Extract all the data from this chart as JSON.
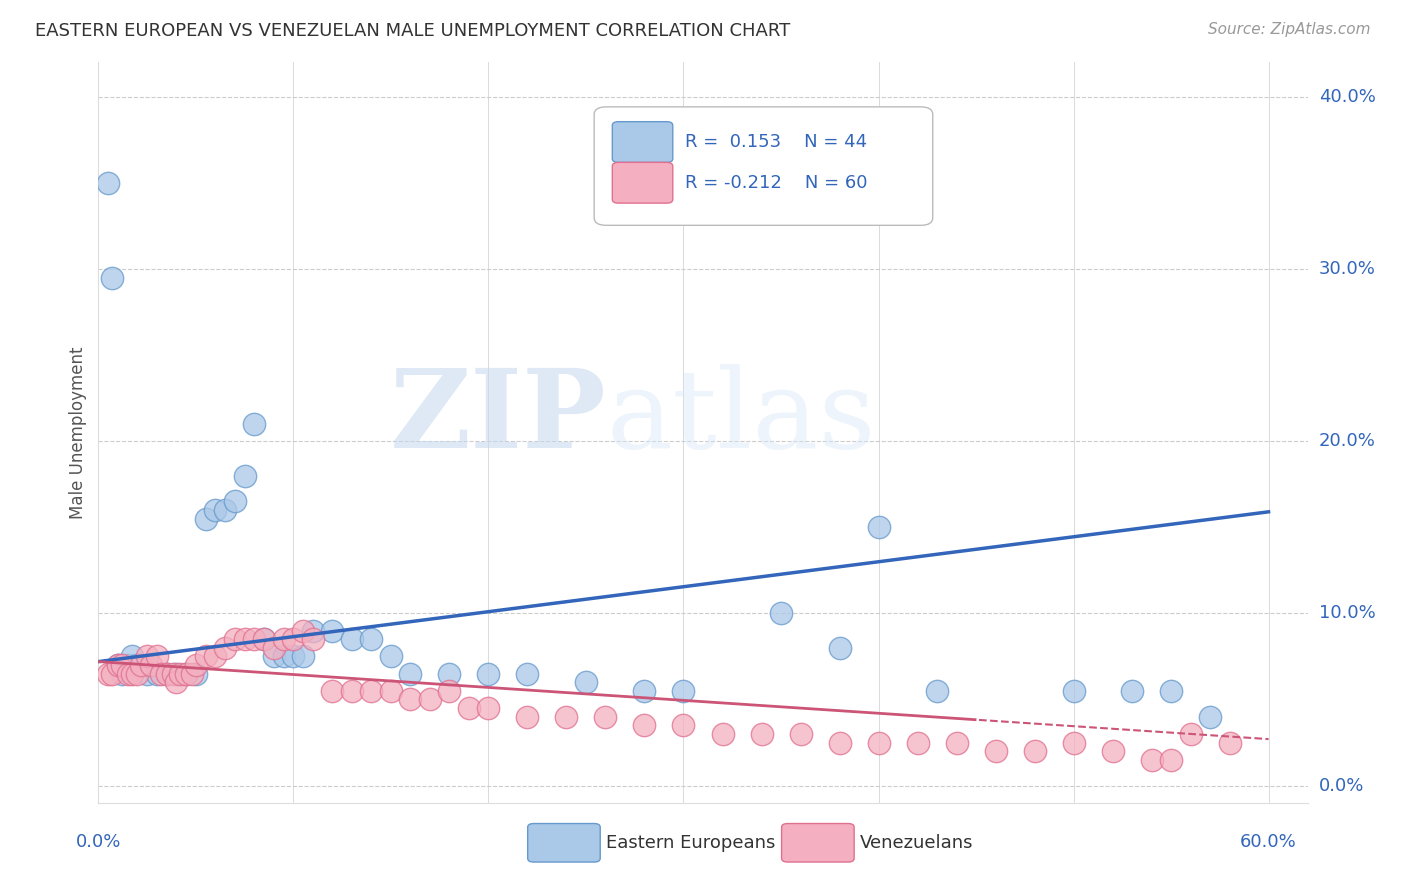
{
  "title": "EASTERN EUROPEAN VS VENEZUELAN MALE UNEMPLOYMENT CORRELATION CHART",
  "source": "Source: ZipAtlas.com",
  "ylabel": "Male Unemployment",
  "xlim": [
    0,
    0.62
  ],
  "ylim": [
    -0.01,
    0.42
  ],
  "yticks": [
    0.0,
    0.1,
    0.2,
    0.3,
    0.4
  ],
  "ytick_labels": [
    "0.0%",
    "10.0%",
    "20.0%",
    "30.0%",
    "40.0%"
  ],
  "xtick_vals": [
    0.0,
    0.1,
    0.2,
    0.3,
    0.4,
    0.5,
    0.6
  ],
  "grid_color": "#cccccc",
  "background_color": "#ffffff",
  "blue_color": "#aac8e8",
  "pink_color": "#f4b0c0",
  "blue_edge_color": "#6699cc",
  "pink_edge_color": "#e07090",
  "blue_line_color": "#3366bb",
  "pink_line_color": "#cc5577",
  "legend_label1": "Eastern Europeans",
  "legend_label2": "Venezuelans",
  "watermark_zip": "ZIP",
  "watermark_atlas": "atlas",
  "blue_intercept": 0.072,
  "blue_slope": 0.145,
  "pink_intercept": 0.072,
  "pink_slope": -0.075,
  "blue_x": [
    0.005,
    0.007,
    0.01,
    0.012,
    0.015,
    0.017,
    0.02,
    0.025,
    0.03,
    0.035,
    0.04,
    0.045,
    0.05,
    0.055,
    0.06,
    0.065,
    0.07,
    0.075,
    0.08,
    0.085,
    0.09,
    0.095,
    0.1,
    0.105,
    0.11,
    0.12,
    0.13,
    0.14,
    0.15,
    0.16,
    0.18,
    0.2,
    0.22,
    0.25,
    0.28,
    0.3,
    0.35,
    0.38,
    0.4,
    0.43,
    0.5,
    0.53,
    0.55,
    0.57
  ],
  "blue_y": [
    0.35,
    0.295,
    0.07,
    0.065,
    0.07,
    0.075,
    0.07,
    0.065,
    0.065,
    0.065,
    0.065,
    0.065,
    0.065,
    0.155,
    0.16,
    0.16,
    0.165,
    0.18,
    0.21,
    0.085,
    0.075,
    0.075,
    0.075,
    0.075,
    0.09,
    0.09,
    0.085,
    0.085,
    0.075,
    0.065,
    0.065,
    0.065,
    0.065,
    0.06,
    0.055,
    0.055,
    0.1,
    0.08,
    0.15,
    0.055,
    0.055,
    0.055,
    0.055,
    0.04
  ],
  "pink_x": [
    0.005,
    0.007,
    0.01,
    0.012,
    0.015,
    0.017,
    0.02,
    0.022,
    0.025,
    0.027,
    0.03,
    0.032,
    0.035,
    0.038,
    0.04,
    0.042,
    0.045,
    0.048,
    0.05,
    0.055,
    0.06,
    0.065,
    0.07,
    0.075,
    0.08,
    0.085,
    0.09,
    0.095,
    0.1,
    0.105,
    0.11,
    0.12,
    0.13,
    0.14,
    0.15,
    0.16,
    0.17,
    0.18,
    0.19,
    0.2,
    0.22,
    0.24,
    0.26,
    0.28,
    0.3,
    0.32,
    0.34,
    0.36,
    0.38,
    0.4,
    0.42,
    0.44,
    0.46,
    0.48,
    0.5,
    0.52,
    0.54,
    0.55,
    0.56,
    0.58
  ],
  "pink_y": [
    0.065,
    0.065,
    0.07,
    0.07,
    0.065,
    0.065,
    0.065,
    0.07,
    0.075,
    0.07,
    0.075,
    0.065,
    0.065,
    0.065,
    0.06,
    0.065,
    0.065,
    0.065,
    0.07,
    0.075,
    0.075,
    0.08,
    0.085,
    0.085,
    0.085,
    0.085,
    0.08,
    0.085,
    0.085,
    0.09,
    0.085,
    0.055,
    0.055,
    0.055,
    0.055,
    0.05,
    0.05,
    0.055,
    0.045,
    0.045,
    0.04,
    0.04,
    0.04,
    0.035,
    0.035,
    0.03,
    0.03,
    0.03,
    0.025,
    0.025,
    0.025,
    0.025,
    0.02,
    0.02,
    0.025,
    0.02,
    0.015,
    0.015,
    0.03,
    0.025
  ]
}
